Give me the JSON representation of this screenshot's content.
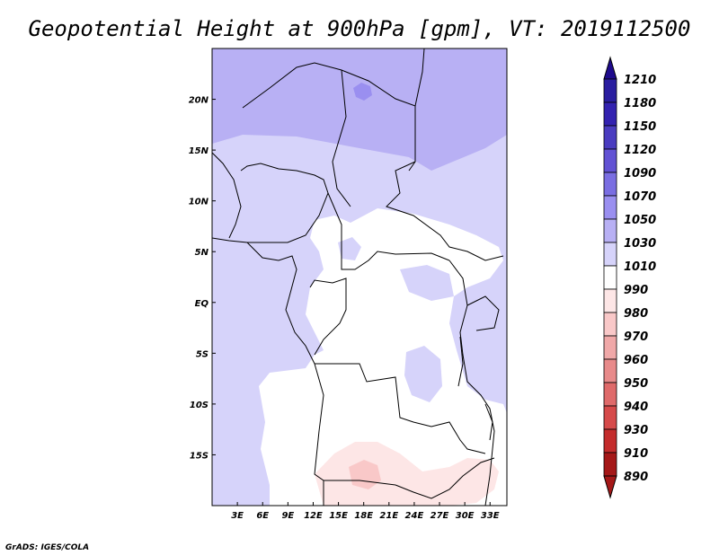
{
  "title": "Geopotential Height at 900hPa [gpm], VT: 2019112500",
  "credit": "GrADS: IGES/COLA",
  "chart_data": {
    "type": "heatmap",
    "title": "Geopotential Height at 900hPa [gpm], VT: 2019112500",
    "x_tick_labels": [
      "3E",
      "6E",
      "9E",
      "12E",
      "15E",
      "18E",
      "21E",
      "24E",
      "27E",
      "30E",
      "33E"
    ],
    "x_tick_values": [
      3,
      6,
      9,
      12,
      15,
      18,
      21,
      24,
      27,
      30,
      33
    ],
    "y_tick_labels": [
      "20N",
      "15N",
      "10N",
      "5N",
      "EQ",
      "5S",
      "10S",
      "15S"
    ],
    "y_tick_values": [
      20,
      15,
      10,
      5,
      0,
      -5,
      -10,
      -15
    ],
    "xlim": [
      0,
      35
    ],
    "ylim": [
      -20,
      25
    ],
    "colorbar": {
      "levels": [
        1210,
        1180,
        1150,
        1120,
        1090,
        1070,
        1050,
        1030,
        1010,
        990,
        980,
        970,
        960,
        950,
        940,
        930,
        910,
        890
      ],
      "colors": [
        "#1e0a8c",
        "#2a1ea0",
        "#3322b0",
        "#4a3cc0",
        "#6252d4",
        "#7a6ee2",
        "#9a8ff0",
        "#b8b0f4",
        "#d6d3fa",
        "#ffffff",
        "#fde6e6",
        "#f9c8c8",
        "#f0a8a8",
        "#e88a8a",
        "#df6a6a",
        "#d64a4a",
        "#c42c2c",
        "#a51818"
      ],
      "placement": "right"
    }
  }
}
